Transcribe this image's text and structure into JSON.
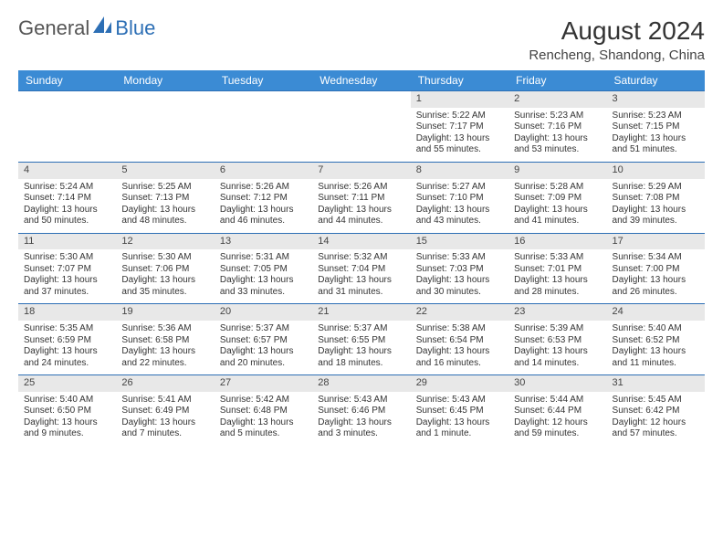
{
  "brand": {
    "part1": "General",
    "part2": "Blue"
  },
  "title": "August 2024",
  "location": "Rencheng, Shandong, China",
  "colors": {
    "header_bg": "#3b8bd4",
    "header_text": "#ffffff",
    "row_border": "#2d6fb5",
    "daynum_bg": "#e8e8e8",
    "text": "#333333",
    "brand_blue": "#2d6fb5",
    "page_bg": "#ffffff"
  },
  "typography": {
    "month_title_fontsize": 28,
    "location_fontsize": 15,
    "weekday_fontsize": 12,
    "daynum_fontsize": 11,
    "cell_fontsize": 10
  },
  "weekdays": [
    "Sunday",
    "Monday",
    "Tuesday",
    "Wednesday",
    "Thursday",
    "Friday",
    "Saturday"
  ],
  "weeks": [
    [
      null,
      null,
      null,
      null,
      {
        "n": "1",
        "sr": "5:22 AM",
        "ss": "7:17 PM",
        "dl": "13 hours and 55 minutes."
      },
      {
        "n": "2",
        "sr": "5:23 AM",
        "ss": "7:16 PM",
        "dl": "13 hours and 53 minutes."
      },
      {
        "n": "3",
        "sr": "5:23 AM",
        "ss": "7:15 PM",
        "dl": "13 hours and 51 minutes."
      }
    ],
    [
      {
        "n": "4",
        "sr": "5:24 AM",
        "ss": "7:14 PM",
        "dl": "13 hours and 50 minutes."
      },
      {
        "n": "5",
        "sr": "5:25 AM",
        "ss": "7:13 PM",
        "dl": "13 hours and 48 minutes."
      },
      {
        "n": "6",
        "sr": "5:26 AM",
        "ss": "7:12 PM",
        "dl": "13 hours and 46 minutes."
      },
      {
        "n": "7",
        "sr": "5:26 AM",
        "ss": "7:11 PM",
        "dl": "13 hours and 44 minutes."
      },
      {
        "n": "8",
        "sr": "5:27 AM",
        "ss": "7:10 PM",
        "dl": "13 hours and 43 minutes."
      },
      {
        "n": "9",
        "sr": "5:28 AM",
        "ss": "7:09 PM",
        "dl": "13 hours and 41 minutes."
      },
      {
        "n": "10",
        "sr": "5:29 AM",
        "ss": "7:08 PM",
        "dl": "13 hours and 39 minutes."
      }
    ],
    [
      {
        "n": "11",
        "sr": "5:30 AM",
        "ss": "7:07 PM",
        "dl": "13 hours and 37 minutes."
      },
      {
        "n": "12",
        "sr": "5:30 AM",
        "ss": "7:06 PM",
        "dl": "13 hours and 35 minutes."
      },
      {
        "n": "13",
        "sr": "5:31 AM",
        "ss": "7:05 PM",
        "dl": "13 hours and 33 minutes."
      },
      {
        "n": "14",
        "sr": "5:32 AM",
        "ss": "7:04 PM",
        "dl": "13 hours and 31 minutes."
      },
      {
        "n": "15",
        "sr": "5:33 AM",
        "ss": "7:03 PM",
        "dl": "13 hours and 30 minutes."
      },
      {
        "n": "16",
        "sr": "5:33 AM",
        "ss": "7:01 PM",
        "dl": "13 hours and 28 minutes."
      },
      {
        "n": "17",
        "sr": "5:34 AM",
        "ss": "7:00 PM",
        "dl": "13 hours and 26 minutes."
      }
    ],
    [
      {
        "n": "18",
        "sr": "5:35 AM",
        "ss": "6:59 PM",
        "dl": "13 hours and 24 minutes."
      },
      {
        "n": "19",
        "sr": "5:36 AM",
        "ss": "6:58 PM",
        "dl": "13 hours and 22 minutes."
      },
      {
        "n": "20",
        "sr": "5:37 AM",
        "ss": "6:57 PM",
        "dl": "13 hours and 20 minutes."
      },
      {
        "n": "21",
        "sr": "5:37 AM",
        "ss": "6:55 PM",
        "dl": "13 hours and 18 minutes."
      },
      {
        "n": "22",
        "sr": "5:38 AM",
        "ss": "6:54 PM",
        "dl": "13 hours and 16 minutes."
      },
      {
        "n": "23",
        "sr": "5:39 AM",
        "ss": "6:53 PM",
        "dl": "13 hours and 14 minutes."
      },
      {
        "n": "24",
        "sr": "5:40 AM",
        "ss": "6:52 PM",
        "dl": "13 hours and 11 minutes."
      }
    ],
    [
      {
        "n": "25",
        "sr": "5:40 AM",
        "ss": "6:50 PM",
        "dl": "13 hours and 9 minutes."
      },
      {
        "n": "26",
        "sr": "5:41 AM",
        "ss": "6:49 PM",
        "dl": "13 hours and 7 minutes."
      },
      {
        "n": "27",
        "sr": "5:42 AM",
        "ss": "6:48 PM",
        "dl": "13 hours and 5 minutes."
      },
      {
        "n": "28",
        "sr": "5:43 AM",
        "ss": "6:46 PM",
        "dl": "13 hours and 3 minutes."
      },
      {
        "n": "29",
        "sr": "5:43 AM",
        "ss": "6:45 PM",
        "dl": "13 hours and 1 minute."
      },
      {
        "n": "30",
        "sr": "5:44 AM",
        "ss": "6:44 PM",
        "dl": "12 hours and 59 minutes."
      },
      {
        "n": "31",
        "sr": "5:45 AM",
        "ss": "6:42 PM",
        "dl": "12 hours and 57 minutes."
      }
    ]
  ],
  "labels": {
    "sunrise": "Sunrise: ",
    "sunset": "Sunset: ",
    "daylight": "Daylight: "
  }
}
